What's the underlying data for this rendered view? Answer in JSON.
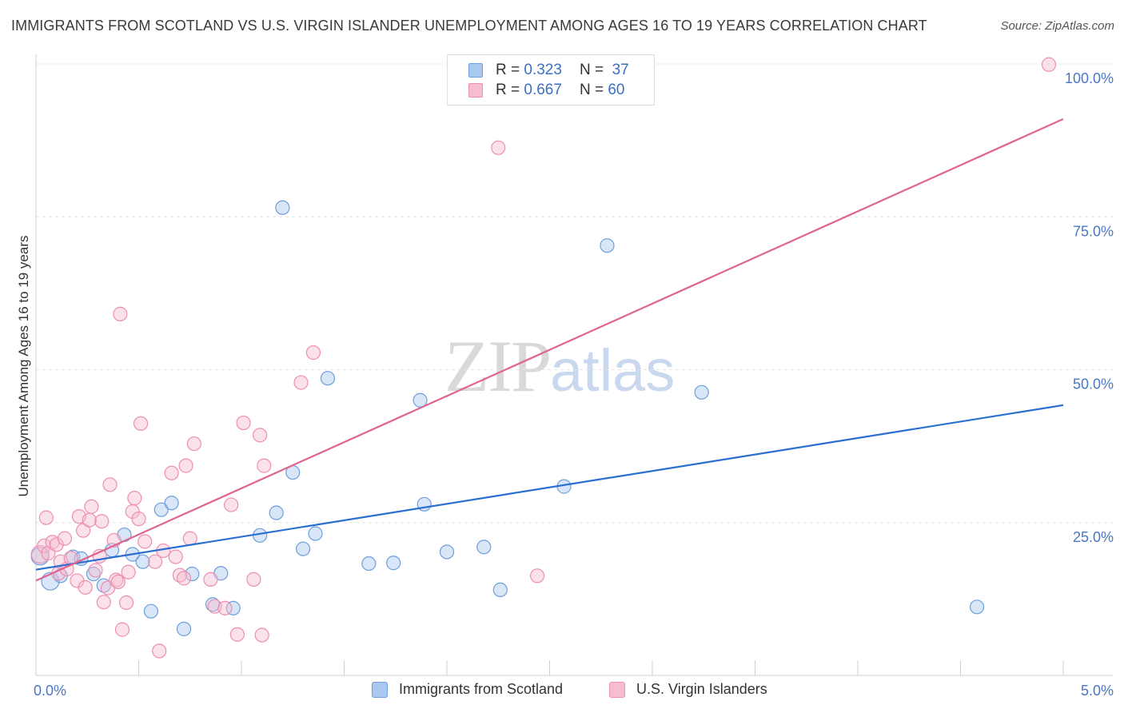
{
  "header": {
    "title": "IMMIGRANTS FROM SCOTLAND VS U.S. VIRGIN ISLANDER UNEMPLOYMENT AMONG AGES 16 TO 19 YEARS CORRELATION CHART",
    "source": "Source: ZipAtlas.com"
  },
  "watermark": {
    "zip": "ZIP",
    "atlas": "atlas"
  },
  "legend": {
    "r_label": "R =",
    "n_label": "N =",
    "rows": [
      {
        "r": "0.323",
        "n": "37"
      },
      {
        "r": "0.667",
        "n": "60"
      }
    ]
  },
  "colors": {
    "scotland_fill": "#a9c8f0",
    "scotland_stroke": "#6c9fdc",
    "scotland_line": "#2a6fd0",
    "virgin_fill": "#f6bcd0",
    "virgin_stroke": "#ec8fb0",
    "virgin_line": "#e0648f",
    "grid": "#e3e3e3",
    "tick_text": "#4a78c2"
  },
  "chart_data": {
    "type": "scatter",
    "title": "IMMIGRANTS FROM SCOTLAND VS U.S. VIRGIN ISLANDER UNEMPLOYMENT AMONG AGES 16 TO 19 YEARS CORRELATION CHART",
    "xlabel": "",
    "ylabel": "Unemployment Among Ages 16 to 19 years",
    "xlim": [
      0,
      5
    ],
    "ylim": [
      0,
      100
    ],
    "x_tick_labels": [
      {
        "value": 0,
        "label": "0.0%"
      },
      {
        "value": 5,
        "label": "5.0%"
      }
    ],
    "y_tick_labels": [
      {
        "value": 25,
        "label": "25.0%"
      },
      {
        "value": 50,
        "label": "50.0%"
      },
      {
        "value": 75,
        "label": "75.0%"
      },
      {
        "value": 100,
        "label": "100.0%"
      }
    ],
    "grid": true,
    "legend_position": "top-center",
    "series": [
      {
        "name": "Immigrants from Scotland",
        "r": 0.323,
        "n": 37,
        "trendline": {
          "x": [
            0,
            5
          ],
          "y": [
            17.3,
            44.2
          ]
        },
        "points": [
          {
            "x": 0.02,
            "y": 19.5,
            "big": true
          },
          {
            "x": 0.07,
            "y": 15.4,
            "big": true
          },
          {
            "x": 0.12,
            "y": 16.3
          },
          {
            "x": 0.18,
            "y": 19.4
          },
          {
            "x": 0.22,
            "y": 19.1
          },
          {
            "x": 0.28,
            "y": 16.6
          },
          {
            "x": 0.33,
            "y": 14.7
          },
          {
            "x": 0.37,
            "y": 20.5
          },
          {
            "x": 0.43,
            "y": 23.0
          },
          {
            "x": 0.47,
            "y": 19.8
          },
          {
            "x": 0.52,
            "y": 18.6
          },
          {
            "x": 0.56,
            "y": 10.5
          },
          {
            "x": 0.61,
            "y": 27.1
          },
          {
            "x": 0.66,
            "y": 28.2
          },
          {
            "x": 0.72,
            "y": 7.6
          },
          {
            "x": 0.76,
            "y": 16.6
          },
          {
            "x": 0.86,
            "y": 11.6
          },
          {
            "x": 0.9,
            "y": 16.7
          },
          {
            "x": 0.96,
            "y": 11.0
          },
          {
            "x": 1.09,
            "y": 22.9
          },
          {
            "x": 1.17,
            "y": 26.6
          },
          {
            "x": 1.25,
            "y": 33.2
          },
          {
            "x": 1.3,
            "y": 20.7
          },
          {
            "x": 1.36,
            "y": 23.2
          },
          {
            "x": 1.42,
            "y": 48.6
          },
          {
            "x": 1.62,
            "y": 18.3
          },
          {
            "x": 1.74,
            "y": 18.4
          },
          {
            "x": 1.87,
            "y": 45.0
          },
          {
            "x": 1.89,
            "y": 28.0
          },
          {
            "x": 2.0,
            "y": 20.2
          },
          {
            "x": 2.18,
            "y": 21.0
          },
          {
            "x": 2.26,
            "y": 14.0
          },
          {
            "x": 2.57,
            "y": 30.9
          },
          {
            "x": 2.78,
            "y": 70.3
          },
          {
            "x": 3.24,
            "y": 46.3
          },
          {
            "x": 4.58,
            "y": 11.2
          },
          {
            "x": 1.2,
            "y": 76.5
          }
        ]
      },
      {
        "name": "U.S. Virgin Islanders",
        "r": 0.667,
        "n": 60,
        "trendline": {
          "x": [
            0,
            5
          ],
          "y": [
            15.5,
            91.0
          ]
        },
        "points": [
          {
            "x": 0.02,
            "y": 19.8,
            "big": true
          },
          {
            "x": 0.04,
            "y": 21.2
          },
          {
            "x": 0.05,
            "y": 25.8
          },
          {
            "x": 0.06,
            "y": 20.0
          },
          {
            "x": 0.08,
            "y": 21.8
          },
          {
            "x": 0.1,
            "y": 21.4
          },
          {
            "x": 0.11,
            "y": 16.7
          },
          {
            "x": 0.12,
            "y": 18.6
          },
          {
            "x": 0.14,
            "y": 22.4
          },
          {
            "x": 0.15,
            "y": 17.4
          },
          {
            "x": 0.17,
            "y": 19.2
          },
          {
            "x": 0.2,
            "y": 15.5
          },
          {
            "x": 0.21,
            "y": 26.0
          },
          {
            "x": 0.23,
            "y": 23.7
          },
          {
            "x": 0.24,
            "y": 14.4
          },
          {
            "x": 0.26,
            "y": 25.4
          },
          {
            "x": 0.27,
            "y": 27.6
          },
          {
            "x": 0.29,
            "y": 17.2
          },
          {
            "x": 0.31,
            "y": 19.5
          },
          {
            "x": 0.32,
            "y": 25.2
          },
          {
            "x": 0.33,
            "y": 12.0
          },
          {
            "x": 0.35,
            "y": 14.3
          },
          {
            "x": 0.36,
            "y": 31.2
          },
          {
            "x": 0.38,
            "y": 22.1
          },
          {
            "x": 0.39,
            "y": 15.6
          },
          {
            "x": 0.4,
            "y": 15.3
          },
          {
            "x": 0.41,
            "y": 59.1
          },
          {
            "x": 0.42,
            "y": 7.5
          },
          {
            "x": 0.44,
            "y": 11.9
          },
          {
            "x": 0.47,
            "y": 26.8
          },
          {
            "x": 0.48,
            "y": 29.0
          },
          {
            "x": 0.5,
            "y": 25.6
          },
          {
            "x": 0.51,
            "y": 41.2
          },
          {
            "x": 0.53,
            "y": 21.9
          },
          {
            "x": 0.6,
            "y": 4.0
          },
          {
            "x": 0.62,
            "y": 20.4
          },
          {
            "x": 0.66,
            "y": 33.1
          },
          {
            "x": 0.68,
            "y": 19.4
          },
          {
            "x": 0.7,
            "y": 16.4
          },
          {
            "x": 0.72,
            "y": 15.9
          },
          {
            "x": 0.73,
            "y": 34.3
          },
          {
            "x": 0.75,
            "y": 22.4
          },
          {
            "x": 0.77,
            "y": 37.9
          },
          {
            "x": 0.85,
            "y": 15.7
          },
          {
            "x": 0.87,
            "y": 11.3
          },
          {
            "x": 0.95,
            "y": 27.9
          },
          {
            "x": 0.98,
            "y": 6.7
          },
          {
            "x": 1.01,
            "y": 41.3
          },
          {
            "x": 1.06,
            "y": 15.7
          },
          {
            "x": 1.09,
            "y": 39.3
          },
          {
            "x": 1.1,
            "y": 6.6
          },
          {
            "x": 1.11,
            "y": 34.3
          },
          {
            "x": 1.29,
            "y": 47.9
          },
          {
            "x": 1.35,
            "y": 52.8
          },
          {
            "x": 2.25,
            "y": 86.3
          },
          {
            "x": 2.44,
            "y": 16.3
          },
          {
            "x": 4.93,
            "y": 99.9
          },
          {
            "x": 0.58,
            "y": 18.6
          },
          {
            "x": 0.45,
            "y": 16.9
          },
          {
            "x": 0.92,
            "y": 11.0
          }
        ]
      }
    ]
  },
  "bottom_legend": {
    "items": [
      {
        "label": "Immigrants from Scotland"
      },
      {
        "label": "U.S. Virgin Islanders"
      }
    ]
  }
}
